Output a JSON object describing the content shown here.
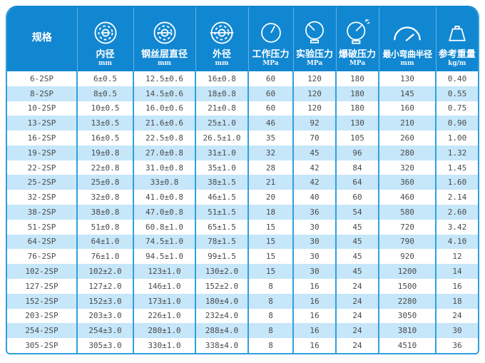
{
  "colors": {
    "header_blue": "#1187D2",
    "stripe_blue": "#C6E6F9",
    "grid_blue": "#30A0DE",
    "text_dark": "#4A4A4A",
    "header_text": "#FFFFFF"
  },
  "chart_data": {
    "type": "table",
    "columns": [
      {
        "label": "规格",
        "unit": "",
        "icon": ""
      },
      {
        "label": "内径",
        "unit": "mm",
        "icon": "hose-bore-icon"
      },
      {
        "label": "钢丝层直径",
        "unit": "mm",
        "icon": "wire-layer-icon"
      },
      {
        "label": "外径",
        "unit": "mm",
        "icon": "outer-diameter-icon"
      },
      {
        "label": "工作压力",
        "unit": "MPa",
        "icon": "gauge-icon"
      },
      {
        "label": "实验压力",
        "unit": "MPa",
        "icon": "gauge-stand-icon"
      },
      {
        "label": "爆破压力",
        "unit": "MPa",
        "icon": "burst-gauge-icon"
      },
      {
        "label": "最小弯曲半径",
        "unit": "mm",
        "icon": "arc-gauge-icon"
      },
      {
        "label": "参考重量",
        "unit": "kg/m",
        "icon": "weight-icon"
      }
    ],
    "rows": [
      [
        "6-2SP",
        "6±0.5",
        "12.5±0.6",
        "16±0.8",
        "60",
        "120",
        "180",
        "130",
        "0.40"
      ],
      [
        "8-2SP",
        "8±0.5",
        "14.5±0.6",
        "18±0.8",
        "60",
        "120",
        "180",
        "145",
        "0.55"
      ],
      [
        "10-2SP",
        "10±0.5",
        "16.0±0.6",
        "21±0.8",
        "60",
        "120",
        "180",
        "160",
        "0.75"
      ],
      [
        "13-2SP",
        "13±0.5",
        "21.6±0.6",
        "25±1.0",
        "46",
        "92",
        "130",
        "210",
        "0.90"
      ],
      [
        "16-2SP",
        "16±0.5",
        "22.5±0.8",
        "26.5±1.0",
        "35",
        "70",
        "105",
        "260",
        "1.00"
      ],
      [
        "19-2SP",
        "19±0.8",
        "27.0±0.8",
        "31±1.0",
        "32",
        "45",
        "96",
        "280",
        "1.32"
      ],
      [
        "22-2SP",
        "22±0.8",
        "31.0±0.8",
        "35±1.0",
        "28",
        "42",
        "84",
        "320",
        "1.45"
      ],
      [
        "25-2SP",
        "25±0.8",
        "33±0.8",
        "38±1.5",
        "21",
        "42",
        "64",
        "360",
        "1.60"
      ],
      [
        "32-2SP",
        "32±0.8",
        "41.0±0.8",
        "46±1.5",
        "20",
        "40",
        "60",
        "460",
        "2.14"
      ],
      [
        "38-2SP",
        "38±0.8",
        "47.0±0.8",
        "51±1.5",
        "18",
        "36",
        "54",
        "580",
        "2.60"
      ],
      [
        "51-2SP",
        "51±0.8",
        "60.8±1.0",
        "65±1.5",
        "15",
        "30",
        "45",
        "720",
        "3.42"
      ],
      [
        "64-2SP",
        "64±1.0",
        "74.5±1.0",
        "78±1.5",
        "15",
        "30",
        "45",
        "790",
        "4.10"
      ],
      [
        "76-2SP",
        "76±1.0",
        "94.5±1.0",
        "99±1.5",
        "15",
        "30",
        "45",
        "920",
        "12"
      ],
      [
        "102-2SP",
        "102±2.0",
        "123±1.0",
        "130±2.0",
        "15",
        "30",
        "45",
        "1200",
        "14"
      ],
      [
        "127-2SP",
        "127±2.0",
        "146±1.0",
        "152±2.0",
        "8",
        "16",
        "24",
        "1500",
        "16"
      ],
      [
        "152-2SP",
        "152±3.0",
        "173±1.0",
        "180±4.0",
        "8",
        "16",
        "24",
        "2280",
        "18"
      ],
      [
        "203-2SP",
        "203±3.0",
        "226±1.0",
        "232±4.0",
        "8",
        "16",
        "24",
        "3050",
        "24"
      ],
      [
        "254-2SP",
        "254±3.0",
        "280±1.0",
        "288±4.0",
        "8",
        "16",
        "24",
        "3810",
        "30"
      ],
      [
        "305-2SP",
        "305±3.0",
        "330±1.0",
        "338±4.0",
        "8",
        "16",
        "24",
        "4510",
        "36"
      ]
    ]
  }
}
